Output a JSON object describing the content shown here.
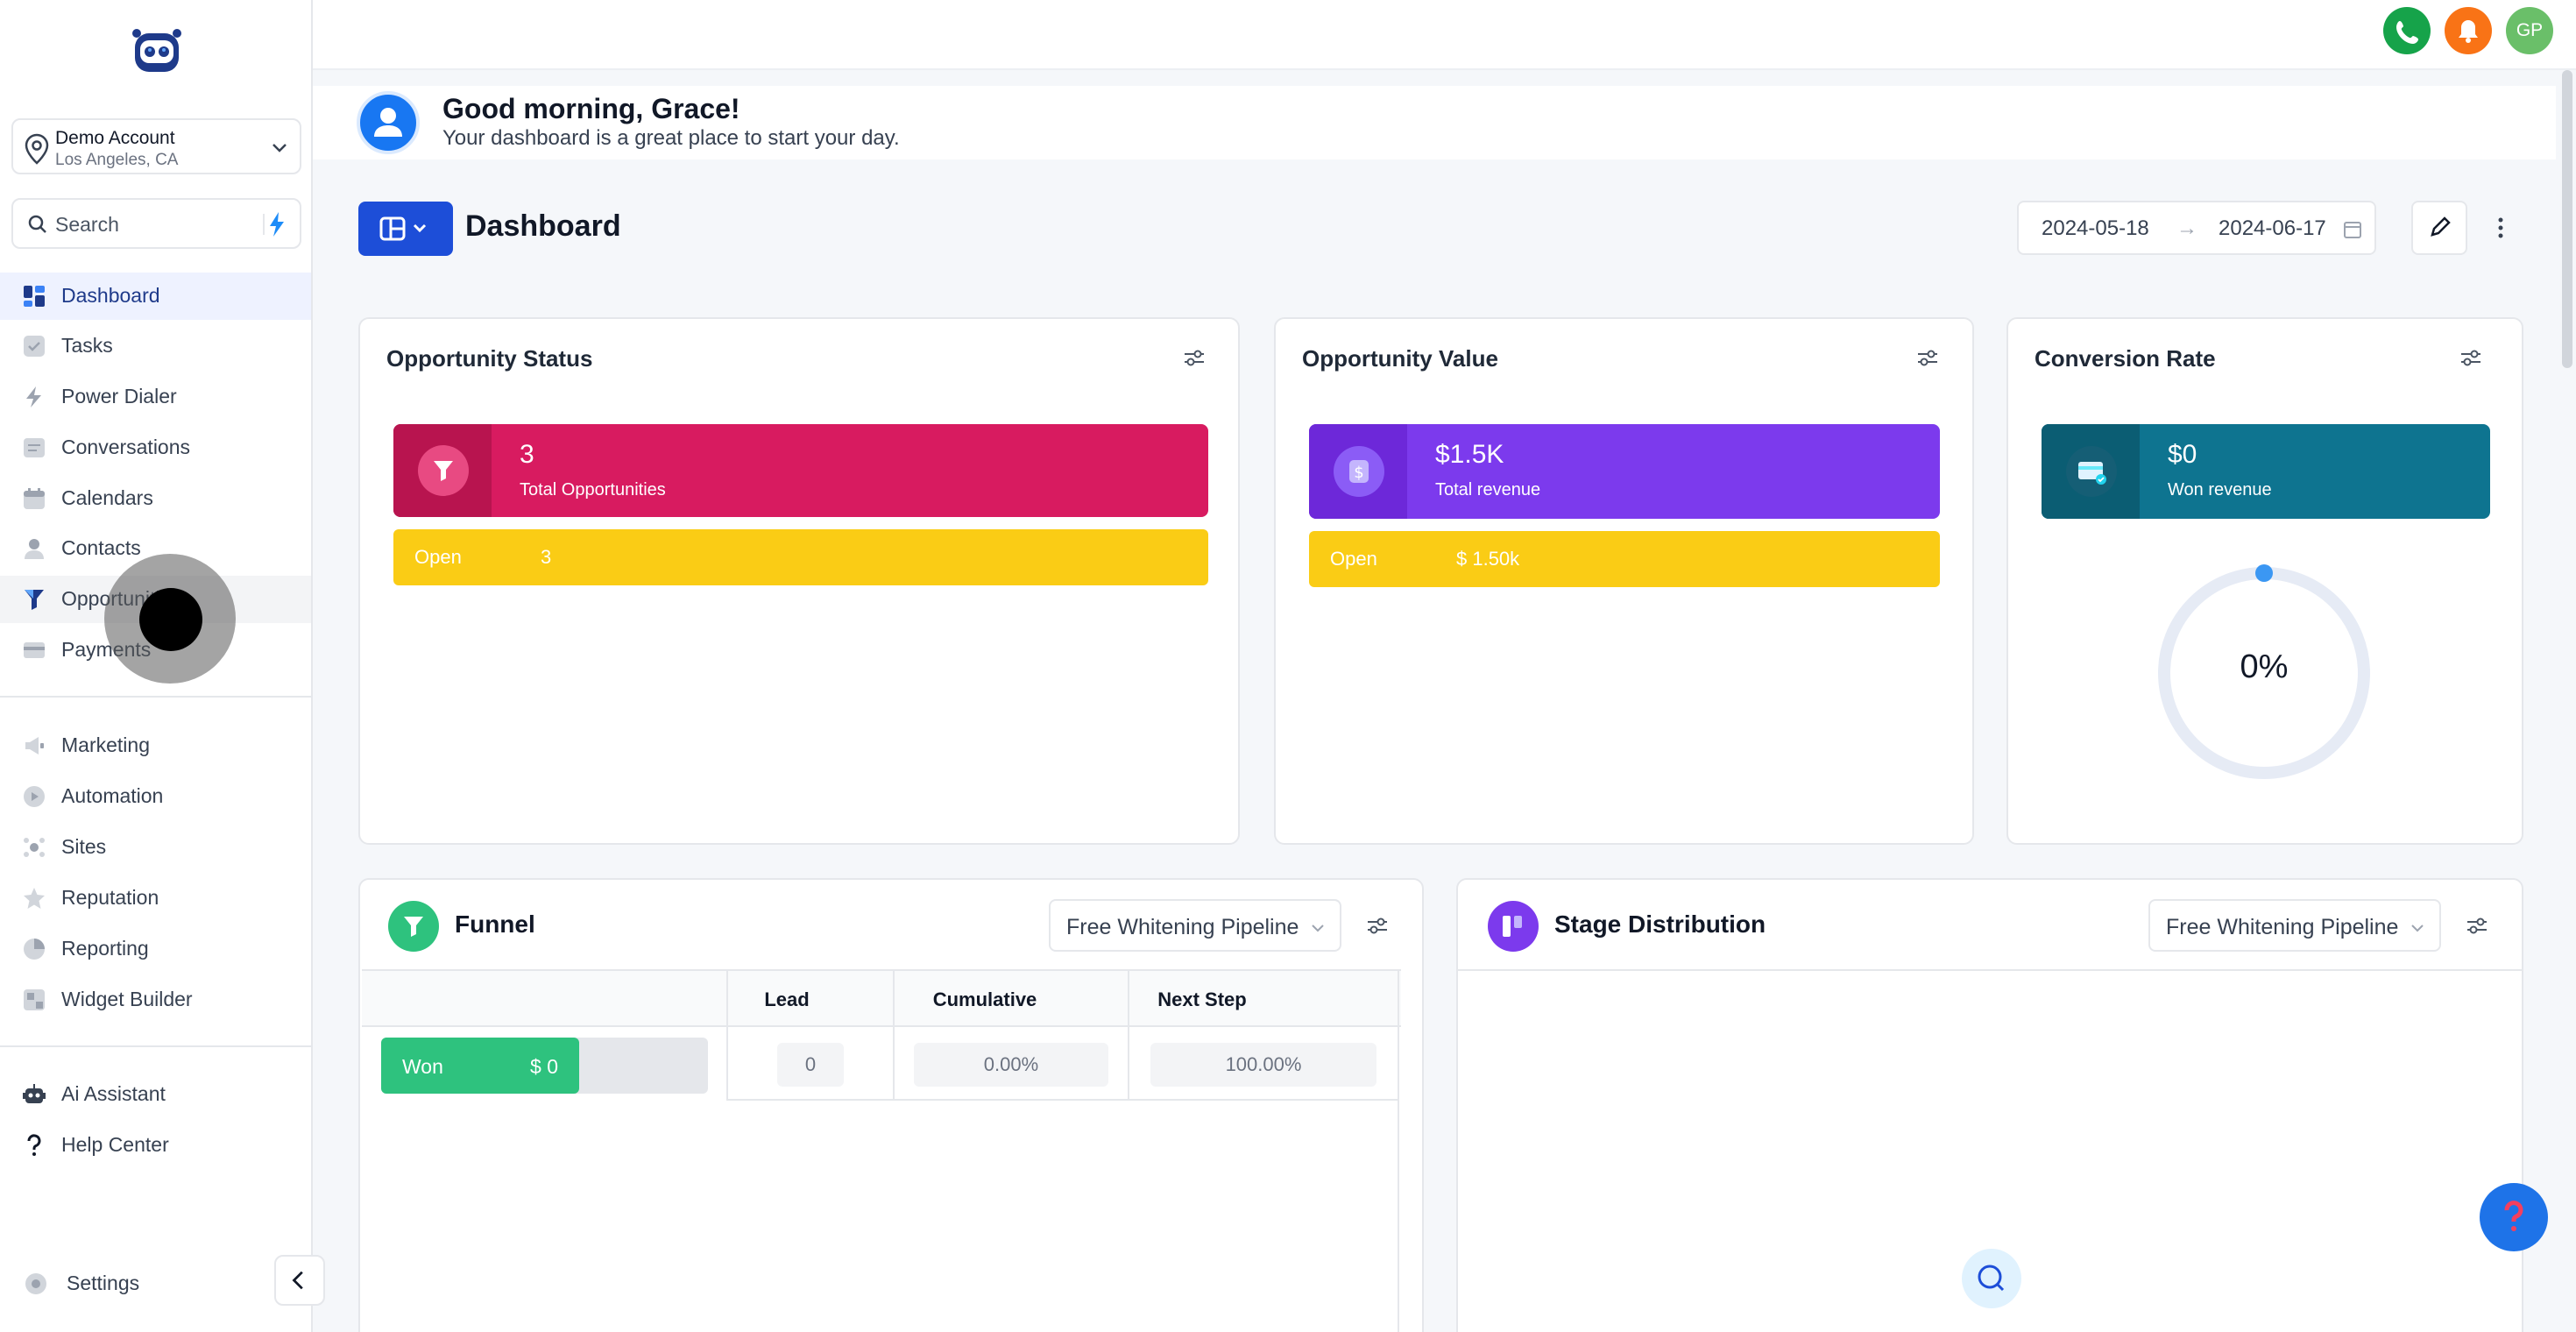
{
  "account": {
    "name": "Demo Account",
    "location": "Los Angeles, CA"
  },
  "search": {
    "placeholder": "Search"
  },
  "sidebar": {
    "items": [
      {
        "label": "Dashboard",
        "icon": "dashboard-icon"
      },
      {
        "label": "Tasks",
        "icon": "tasks-icon"
      },
      {
        "label": "Power Dialer",
        "icon": "power-dialer-icon"
      },
      {
        "label": "Conversations",
        "icon": "conversations-icon"
      },
      {
        "label": "Calendars",
        "icon": "calendar-icon"
      },
      {
        "label": "Contacts",
        "icon": "contacts-icon"
      },
      {
        "label": "Opportunities",
        "icon": "filter-icon"
      },
      {
        "label": "Payments",
        "icon": "payments-icon"
      }
    ],
    "items2": [
      {
        "label": "Marketing",
        "icon": "marketing-icon"
      },
      {
        "label": "Automation",
        "icon": "automation-icon"
      },
      {
        "label": "Sites",
        "icon": "sites-icon"
      },
      {
        "label": "Reputation",
        "icon": "reputation-icon"
      },
      {
        "label": "Reporting",
        "icon": "reporting-icon"
      },
      {
        "label": "Widget Builder",
        "icon": "widget-builder-icon"
      }
    ],
    "items3": [
      {
        "label": "Ai Assistant",
        "icon": "robot-icon"
      },
      {
        "label": "Help Center",
        "icon": "question-icon"
      }
    ],
    "settings": "Settings"
  },
  "topbar": {
    "avatar_initials": "GP"
  },
  "greeting": {
    "title": "Good morning, Grace!",
    "subtitle": "Your dashboard is a great place to start your day."
  },
  "dashboard": {
    "title": "Dashboard",
    "date_from": "2024-05-18",
    "date_to": "2024-06-17",
    "arrow": "→"
  },
  "cards": {
    "status": {
      "title": "Opportunity Status",
      "value": "3",
      "label": "Total Opportunities",
      "open_label": "Open",
      "open_value": "3"
    },
    "value": {
      "title": "Opportunity Value",
      "value": "$1.5K",
      "label": "Total revenue",
      "open_label": "Open",
      "open_value": "$ 1.50k"
    },
    "conversion": {
      "title": "Conversion Rate",
      "value": "$0",
      "label": "Won revenue",
      "percent": "0%"
    }
  },
  "funnel": {
    "title": "Funnel",
    "pipeline": "Free Whitening Pipeline",
    "columns": [
      "Lead",
      "Cumulative",
      "Next Step"
    ],
    "row": {
      "stage": "Won",
      "amount": "$ 0",
      "lead": "0",
      "cumulative": "0.00%",
      "next_step": "100.00%"
    }
  },
  "stage": {
    "title": "Stage Distribution",
    "pipeline": "Free Whitening Pipeline"
  },
  "colors": {
    "primary": "#1d4ed8",
    "status": "#d81b60",
    "value": "#7c3aed",
    "conversion": "#0e7490",
    "open": "#facc15",
    "won": "#2ec27e"
  }
}
